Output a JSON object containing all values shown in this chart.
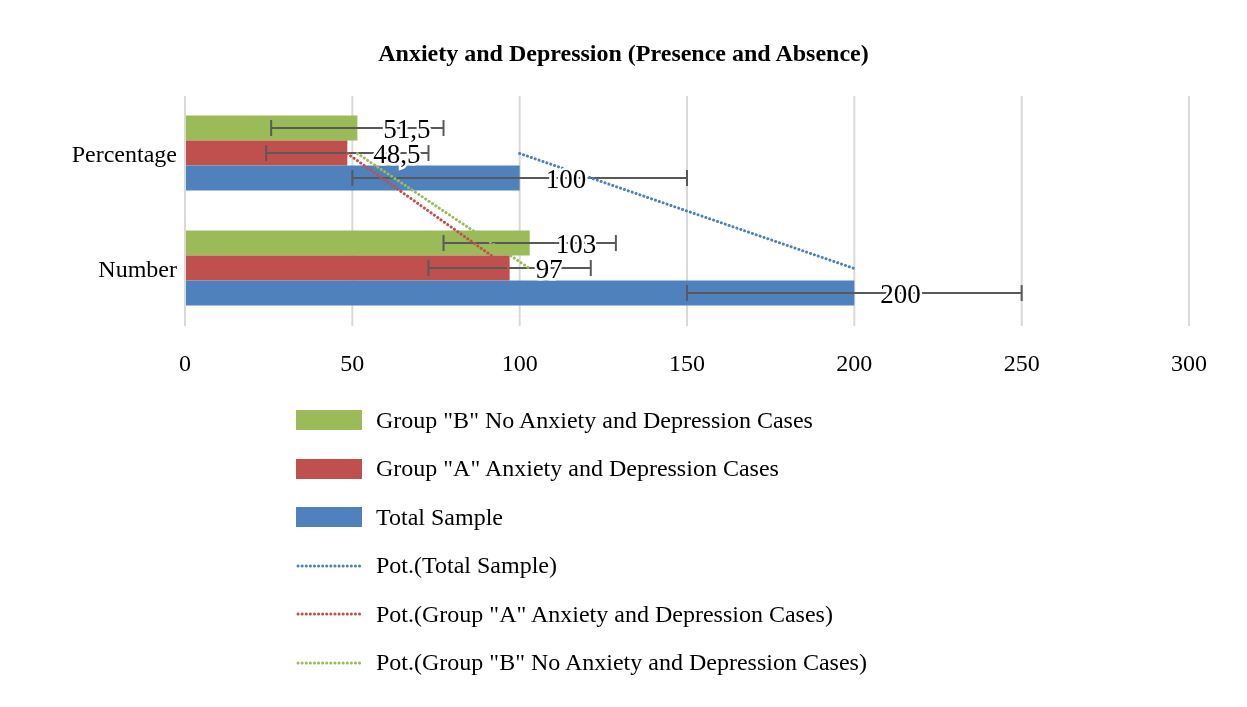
{
  "chart_data": {
    "type": "bar",
    "orientation": "horizontal",
    "title": "Anxiety and Depression (Presence and Absence)",
    "categories": [
      "Percentage",
      "Number"
    ],
    "series": [
      {
        "name": "Group \"B\" No Anxiety and Depression Cases",
        "color": "#9bbb59",
        "values": [
          51.5,
          103
        ],
        "errors": [
          25.75,
          25.75
        ],
        "value_labels": [
          "51,5",
          "103"
        ]
      },
      {
        "name": "Group \"A\" Anxiety and Depression Cases",
        "color": "#c0504d",
        "values": [
          48.5,
          97
        ],
        "errors": [
          24.25,
          24.25
        ],
        "value_labels": [
          "48,5",
          "97"
        ]
      },
      {
        "name": "Total Sample",
        "color": "#4f81bd",
        "values": [
          100,
          200
        ],
        "errors": [
          50,
          50
        ],
        "value_labels": [
          "100",
          "200"
        ]
      },
      {
        "name": "Pot.(Total Sample)",
        "type": "line",
        "color": "#4f81bd",
        "line_style": "dotted",
        "values": [
          100,
          200
        ]
      },
      {
        "name": "Pot.(Group \"A\" Anxiety and Depression Cases)",
        "type": "line",
        "color": "#c0504d",
        "line_style": "dotted",
        "values": [
          48.5,
          97
        ]
      },
      {
        "name": "Pot.(Group \"B\" No Anxiety and Depression Cases)",
        "type": "line",
        "color": "#9bbb59",
        "line_style": "dotted",
        "values": [
          51.5,
          103
        ]
      }
    ],
    "xlim": [
      0,
      300
    ],
    "xticks": [
      0,
      50,
      100,
      150,
      200,
      250,
      300
    ],
    "grid": "x",
    "legend": "bottom"
  }
}
